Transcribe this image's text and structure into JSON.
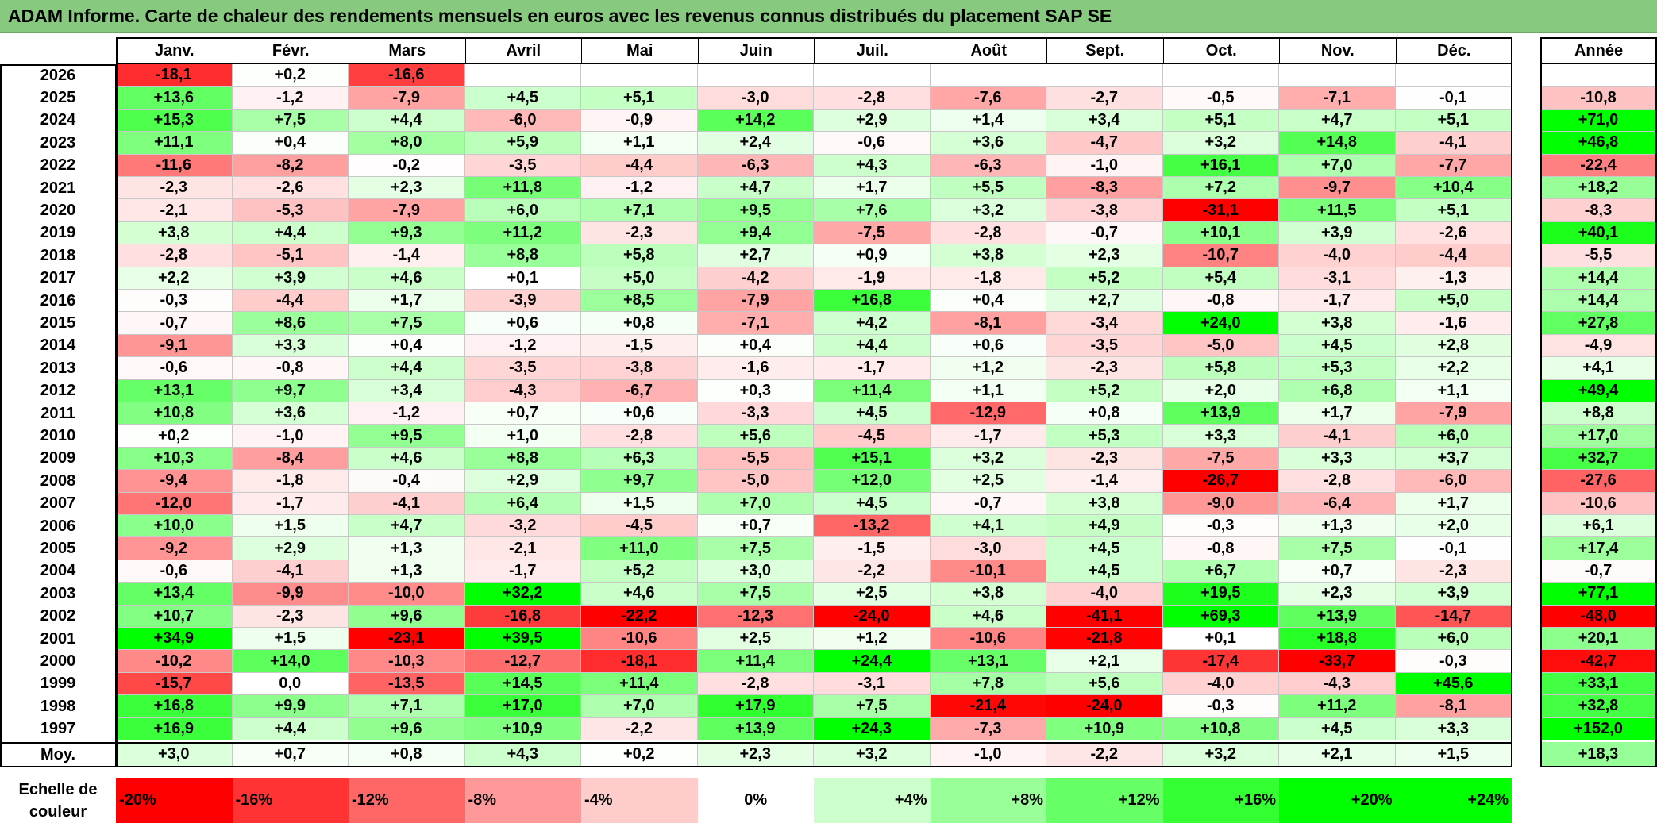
{
  "title": "ADAM Informe. Carte de chaleur des rendements mensuels en euros avec les revenus connus distribués du placement SAP SE",
  "chart_data": {
    "type": "heatmap",
    "title": "ADAM Informe. Carte de chaleur des rendements mensuels en euros avec les revenus connus distribués du placement SAP SE",
    "columns": [
      "Janv.",
      "Févr.",
      "Mars",
      "Avril",
      "Mai",
      "Juin",
      "Juil.",
      "Août",
      "Sept.",
      "Oct.",
      "Nov.",
      "Déc."
    ],
    "year_column_label": "Année",
    "average_row_label": "Moy.",
    "rows": [
      {
        "year": "2026",
        "months": [
          "-18,1",
          "+0,2",
          "-16,6",
          "",
          "",
          "",
          "",
          "",
          "",
          "",
          "",
          ""
        ],
        "annual": ""
      },
      {
        "year": "2025",
        "months": [
          "+13,6",
          "-1,2",
          "-7,9",
          "+4,5",
          "+5,1",
          "-3,0",
          "-2,8",
          "-7,6",
          "-2,7",
          "-0,5",
          "-7,1",
          "-0,1"
        ],
        "annual": "-10,8"
      },
      {
        "year": "2024",
        "months": [
          "+15,3",
          "+7,5",
          "+4,4",
          "-6,0",
          "-0,9",
          "+14,2",
          "+2,9",
          "+1,4",
          "+3,4",
          "+5,1",
          "+4,7",
          "+5,1"
        ],
        "annual": "+71,0"
      },
      {
        "year": "2023",
        "months": [
          "+11,1",
          "+0,4",
          "+8,0",
          "+5,9",
          "+1,1",
          "+2,4",
          "-0,6",
          "+3,6",
          "-4,7",
          "+3,2",
          "+14,8",
          "-4,1"
        ],
        "annual": "+46,8"
      },
      {
        "year": "2022",
        "months": [
          "-11,6",
          "-8,2",
          "-0,2",
          "-3,5",
          "-4,4",
          "-6,3",
          "+4,3",
          "-6,3",
          "-1,0",
          "+16,1",
          "+7,0",
          "-7,7"
        ],
        "annual": "-22,4"
      },
      {
        "year": "2021",
        "months": [
          "-2,3",
          "-2,6",
          "+2,3",
          "+11,8",
          "-1,2",
          "+4,7",
          "+1,7",
          "+5,5",
          "-8,3",
          "+7,2",
          "-9,7",
          "+10,4"
        ],
        "annual": "+18,2"
      },
      {
        "year": "2020",
        "months": [
          "-2,1",
          "-5,3",
          "-7,9",
          "+6,0",
          "+7,1",
          "+9,5",
          "+7,6",
          "+3,2",
          "-3,8",
          "-31,1",
          "+11,5",
          "+5,1"
        ],
        "annual": "-8,3"
      },
      {
        "year": "2019",
        "months": [
          "+3,8",
          "+4,4",
          "+9,3",
          "+11,2",
          "-2,3",
          "+9,4",
          "-7,5",
          "-2,8",
          "-0,7",
          "+10,1",
          "+3,9",
          "-2,6"
        ],
        "annual": "+40,1"
      },
      {
        "year": "2018",
        "months": [
          "-2,8",
          "-5,1",
          "-1,4",
          "+8,8",
          "+5,8",
          "+2,7",
          "+0,9",
          "+3,8",
          "+2,3",
          "-10,7",
          "-4,0",
          "-4,4"
        ],
        "annual": "-5,5"
      },
      {
        "year": "2017",
        "months": [
          "+2,2",
          "+3,9",
          "+4,6",
          "+0,1",
          "+5,0",
          "-4,2",
          "-1,9",
          "-1,8",
          "+5,2",
          "+5,4",
          "-3,1",
          "-1,3"
        ],
        "annual": "+14,4"
      },
      {
        "year": "2016",
        "months": [
          "-0,3",
          "-4,4",
          "+1,7",
          "-3,9",
          "+8,5",
          "-7,9",
          "+16,8",
          "+0,4",
          "+2,7",
          "-0,8",
          "-1,7",
          "+5,0"
        ],
        "annual": "+14,4"
      },
      {
        "year": "2015",
        "months": [
          "-0,7",
          "+8,6",
          "+7,5",
          "+0,6",
          "+0,8",
          "-7,1",
          "+4,2",
          "-8,1",
          "-3,4",
          "+24,0",
          "+3,8",
          "-1,6"
        ],
        "annual": "+27,8"
      },
      {
        "year": "2014",
        "months": [
          "-9,1",
          "+3,3",
          "+0,4",
          "-1,2",
          "-1,5",
          "+0,4",
          "+4,4",
          "+0,6",
          "-3,5",
          "-5,0",
          "+4,5",
          "+2,8"
        ],
        "annual": "-4,9"
      },
      {
        "year": "2013",
        "months": [
          "-0,6",
          "-0,8",
          "+4,4",
          "-3,5",
          "-3,8",
          "-1,6",
          "-1,7",
          "+1,2",
          "-2,3",
          "+5,8",
          "+5,3",
          "+2,2"
        ],
        "annual": "+4,1"
      },
      {
        "year": "2012",
        "months": [
          "+13,1",
          "+9,7",
          "+3,4",
          "-4,3",
          "-6,7",
          "+0,3",
          "+11,4",
          "+1,1",
          "+5,2",
          "+2,0",
          "+6,8",
          "+1,1"
        ],
        "annual": "+49,4"
      },
      {
        "year": "2011",
        "months": [
          "+10,8",
          "+3,6",
          "-1,2",
          "+0,7",
          "+0,6",
          "-3,3",
          "+4,5",
          "-12,9",
          "+0,8",
          "+13,9",
          "+1,7",
          "-7,9"
        ],
        "annual": "+8,8"
      },
      {
        "year": "2010",
        "months": [
          "+0,2",
          "-1,0",
          "+9,5",
          "+1,0",
          "-2,8",
          "+5,6",
          "-4,5",
          "-1,7",
          "+5,3",
          "+3,3",
          "-4,1",
          "+6,0"
        ],
        "annual": "+17,0"
      },
      {
        "year": "2009",
        "months": [
          "+10,3",
          "-8,4",
          "+4,6",
          "+8,8",
          "+6,3",
          "-5,5",
          "+15,1",
          "+3,2",
          "-2,3",
          "-7,5",
          "+3,3",
          "+3,7"
        ],
        "annual": "+32,7"
      },
      {
        "year": "2008",
        "months": [
          "-9,4",
          "-1,8",
          "-0,4",
          "+2,9",
          "+9,7",
          "-5,0",
          "+12,0",
          "+2,5",
          "-1,4",
          "-26,7",
          "-2,8",
          "-6,0"
        ],
        "annual": "-27,6"
      },
      {
        "year": "2007",
        "months": [
          "-12,0",
          "-1,7",
          "-4,1",
          "+6,4",
          "+1,5",
          "+7,0",
          "+4,5",
          "-0,7",
          "+3,8",
          "-9,0",
          "-6,4",
          "+1,7"
        ],
        "annual": "-10,6"
      },
      {
        "year": "2006",
        "months": [
          "+10,0",
          "+1,5",
          "+4,7",
          "-3,2",
          "-4,5",
          "+0,7",
          "-13,2",
          "+4,1",
          "+4,9",
          "-0,3",
          "+1,3",
          "+2,0"
        ],
        "annual": "+6,1"
      },
      {
        "year": "2005",
        "months": [
          "-9,2",
          "+2,9",
          "+1,3",
          "-2,1",
          "+11,0",
          "+7,5",
          "-1,5",
          "-3,0",
          "+4,5",
          "-0,8",
          "+7,5",
          "-0,1"
        ],
        "annual": "+17,4"
      },
      {
        "year": "2004",
        "months": [
          "-0,6",
          "-4,1",
          "+1,3",
          "-1,7",
          "+5,2",
          "+3,0",
          "-2,2",
          "-10,1",
          "+4,5",
          "+6,7",
          "+0,7",
          "-2,3"
        ],
        "annual": "-0,7"
      },
      {
        "year": "2003",
        "months": [
          "+13,4",
          "-9,9",
          "-10,0",
          "+32,2",
          "+4,6",
          "+7,5",
          "+2,5",
          "+3,8",
          "-4,0",
          "+19,5",
          "+2,3",
          "+3,9"
        ],
        "annual": "+77,1"
      },
      {
        "year": "2002",
        "months": [
          "+10,7",
          "-2,3",
          "+9,6",
          "-16,8",
          "-22,2",
          "-12,3",
          "-24,0",
          "+4,6",
          "-41,1",
          "+69,3",
          "+13,9",
          "-14,7"
        ],
        "annual": "-48,0"
      },
      {
        "year": "2001",
        "months": [
          "+34,9",
          "+1,5",
          "-23,1",
          "+39,5",
          "-10,6",
          "+2,5",
          "+1,2",
          "-10,6",
          "-21,8",
          "+0,1",
          "+18,8",
          "+6,0"
        ],
        "annual": "+20,1"
      },
      {
        "year": "2000",
        "months": [
          "-10,2",
          "+14,0",
          "-10,3",
          "-12,7",
          "-18,1",
          "+11,4",
          "+24,4",
          "+13,1",
          "+2,1",
          "-17,4",
          "-33,7",
          "-0,3"
        ],
        "annual": "-42,7"
      },
      {
        "year": "1999",
        "months": [
          "-15,7",
          "0,0",
          "-13,5",
          "+14,5",
          "+11,4",
          "-2,8",
          "-3,1",
          "+7,8",
          "+5,6",
          "-4,0",
          "-4,3",
          "+45,6"
        ],
        "annual": "+33,1"
      },
      {
        "year": "1998",
        "months": [
          "+16,8",
          "+9,9",
          "+7,1",
          "+17,0",
          "+7,0",
          "+17,9",
          "+7,5",
          "-21,4",
          "-24,0",
          "-0,3",
          "+11,2",
          "-8,1"
        ],
        "annual": "+32,8"
      },
      {
        "year": "1997",
        "months": [
          "+16,9",
          "+4,4",
          "+9,6",
          "+10,9",
          "-2,2",
          "+13,9",
          "+24,3",
          "-7,3",
          "+10,9",
          "+10,8",
          "+4,5",
          "+3,3"
        ],
        "annual": "+152,0"
      }
    ],
    "averages": {
      "months": [
        "+3,0",
        "+0,7",
        "+0,8",
        "+4,3",
        "+0,2",
        "+2,3",
        "+3,2",
        "-1,0",
        "-2,2",
        "+3,2",
        "+2,1",
        "+1,5"
      ],
      "annual": "+18,3"
    },
    "color_scale": {
      "label": "Echelle de couleur",
      "steps": [
        "-20%",
        "-16%",
        "-12%",
        "-8%",
        "-4%",
        "0%",
        "+4%",
        "+8%",
        "+12%",
        "+16%",
        "+20%",
        "+24%"
      ],
      "negative_color": "#ff0000",
      "neutral_color": "#ffffff",
      "positive_color": "#00ff00"
    }
  }
}
